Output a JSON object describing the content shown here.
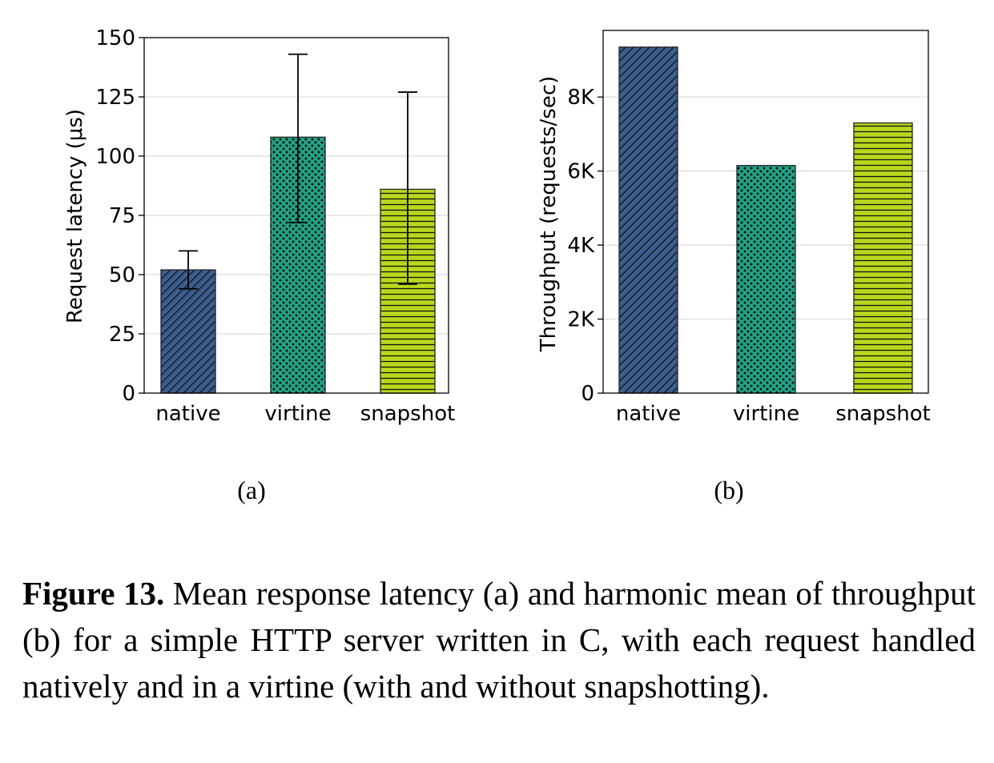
{
  "chart_data": [
    {
      "type": "bar",
      "categories": [
        "native",
        "virtine",
        "snapshot"
      ],
      "values": [
        52,
        108,
        86
      ],
      "error_low": [
        44,
        72,
        46
      ],
      "error_high": [
        60,
        143,
        127
      ],
      "ylabel": "Request latency (μs)",
      "ylim": [
        0,
        150
      ],
      "yticks": [
        0,
        25,
        50,
        75,
        100,
        125,
        150
      ],
      "ytick_labels": [
        "0",
        "25",
        "50",
        "75",
        "100",
        "125",
        "150"
      ],
      "grid": "horizontal",
      "colors": [
        "#3b5d8f",
        "#20a486",
        "#b8d71d"
      ],
      "hatches": [
        "diagonal",
        "dots",
        "horizontal"
      ],
      "sublabel": "(a)"
    },
    {
      "type": "bar",
      "categories": [
        "native",
        "virtine",
        "snapshot"
      ],
      "values": [
        9350,
        6150,
        7300
      ],
      "ylabel": "Throughput (requests/sec)",
      "ylim": [
        0,
        9800
      ],
      "yticks": [
        0,
        2000,
        4000,
        6000,
        8000
      ],
      "ytick_labels": [
        "0",
        "2K",
        "4K",
        "6K",
        "8K"
      ],
      "grid": "horizontal",
      "colors": [
        "#3b5d8f",
        "#20a486",
        "#b8d71d"
      ],
      "hatches": [
        "diagonal",
        "dots",
        "horizontal"
      ],
      "sublabel": "(b)"
    }
  ],
  "caption": {
    "label": "Figure 13.",
    "text": " Mean response latency (a) and harmonic mean of throughput (b) for a simple HTTP server written in C, with each request handled natively and in a virtine (with and without snapshotting)."
  }
}
